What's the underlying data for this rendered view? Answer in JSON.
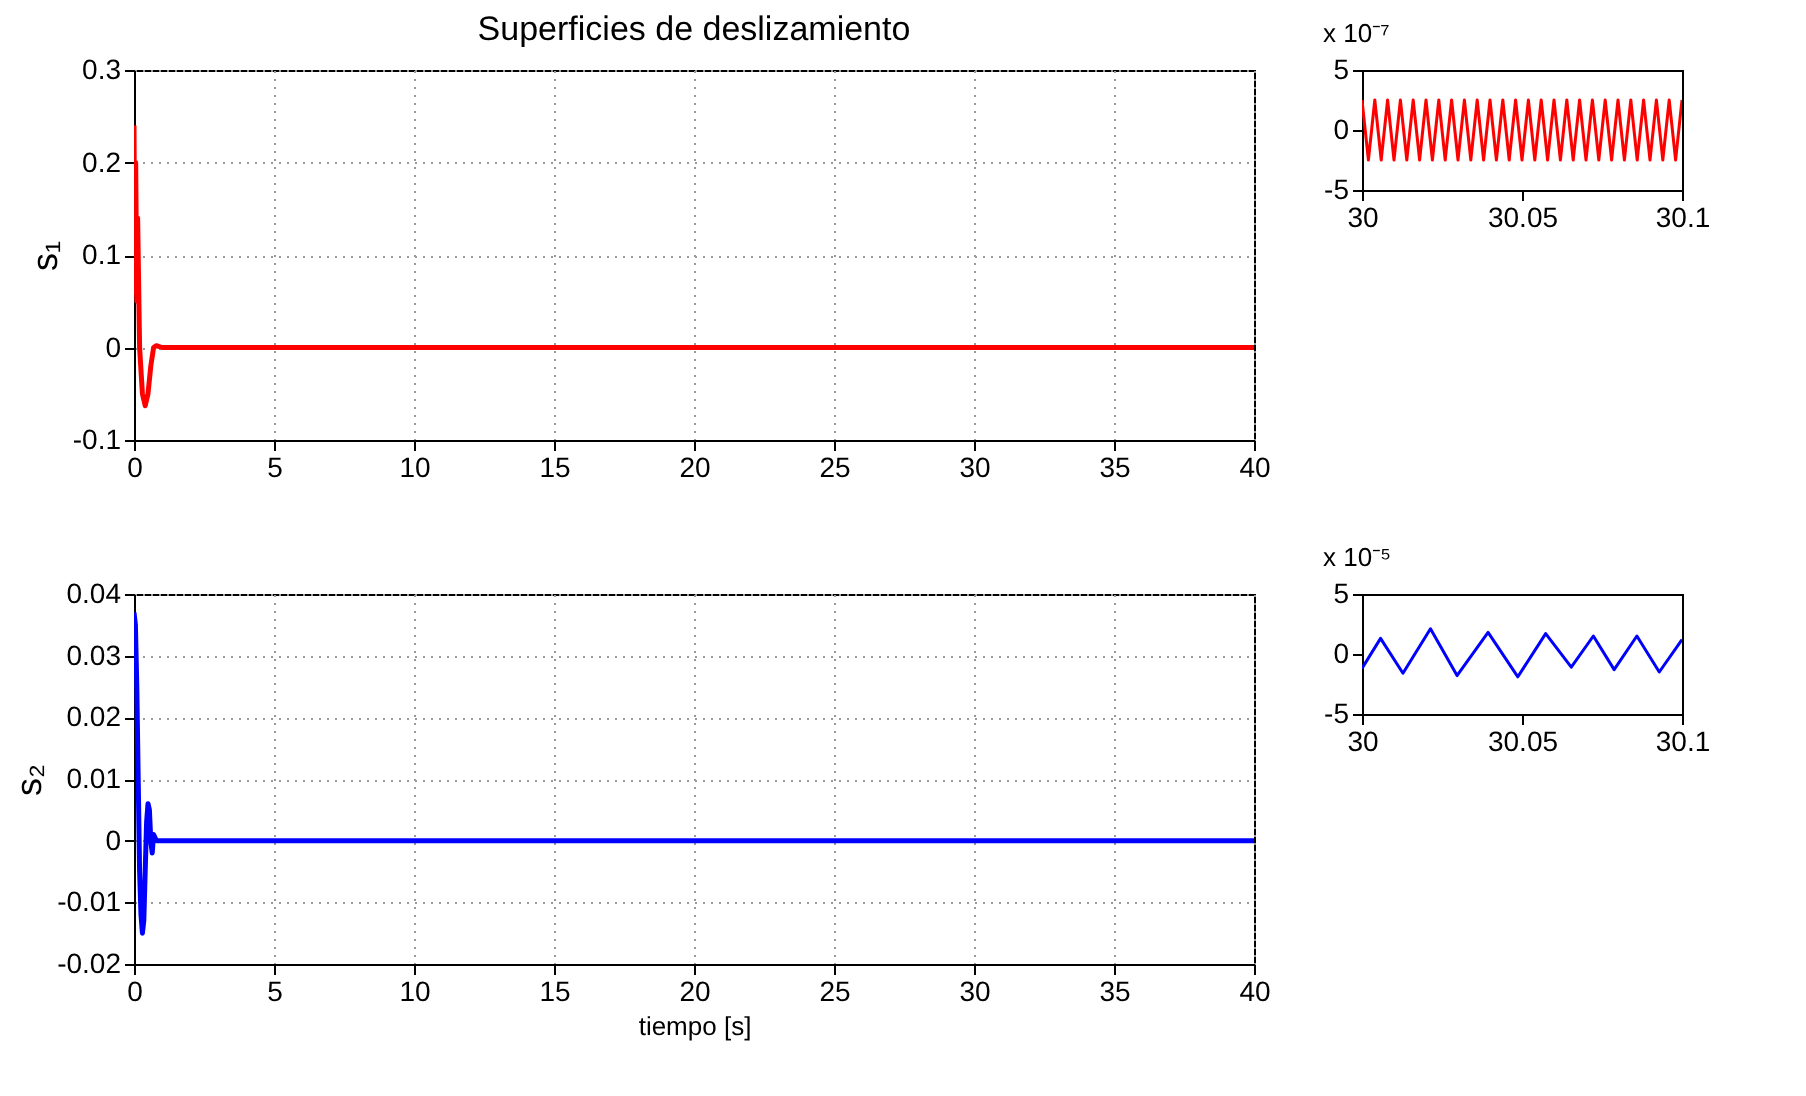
{
  "chart_data": [
    {
      "type": "line",
      "title": "Superficies de deslizamiento",
      "ylabel": "s₁",
      "x": [
        0,
        0.03,
        0.06,
        0.1,
        0.13,
        0.2,
        0.3,
        0.4,
        0.5,
        0.6,
        0.7,
        0.8,
        1,
        40
      ],
      "series": [
        {
          "color": "#ff0000",
          "values": [
            0.24,
            0.06,
            0.2,
            0.05,
            0.14,
            0.0,
            -0.05,
            -0.063,
            -0.05,
            -0.02,
            0.0,
            0.002,
            0,
            0
          ]
        }
      ],
      "xlim": [
        0,
        40
      ],
      "ylim": [
        -0.1,
        0.3
      ],
      "xticks": [
        0,
        5,
        10,
        15,
        20,
        25,
        30,
        35,
        40
      ],
      "yticks": [
        -0.1,
        0,
        0.1,
        0.2,
        0.3
      ],
      "grid": true
    },
    {
      "type": "line",
      "annotations": [
        "x 10⁻⁷"
      ],
      "x": [
        30,
        30.002,
        30.004,
        30.006,
        30.008,
        30.01,
        30.012,
        30.014,
        30.016,
        30.018,
        30.02,
        30.022,
        30.024,
        30.026,
        30.028,
        30.03,
        30.032,
        30.034,
        30.036,
        30.038,
        30.04,
        30.042,
        30.044,
        30.046,
        30.048,
        30.05,
        30.052,
        30.054,
        30.056,
        30.058,
        30.06,
        30.062,
        30.064,
        30.066,
        30.068,
        30.07,
        30.072,
        30.074,
        30.076,
        30.078,
        30.08,
        30.082,
        30.084,
        30.086,
        30.088,
        30.09,
        30.092,
        30.094,
        30.096,
        30.098,
        30.1
      ],
      "series": [
        {
          "color": "#ff0000",
          "values": [
            2.5,
            -2.5,
            2.5,
            -2.5,
            2.5,
            -2.5,
            2.5,
            -2.5,
            2.5,
            -2.5,
            2.5,
            -2.5,
            2.5,
            -2.5,
            2.5,
            -2.5,
            2.5,
            -2.5,
            2.5,
            -2.5,
            2.5,
            -2.5,
            2.5,
            -2.5,
            2.5,
            -2.5,
            2.5,
            -2.5,
            2.5,
            -2.5,
            2.5,
            -2.5,
            2.5,
            -2.5,
            2.5,
            -2.5,
            2.5,
            -2.5,
            2.5,
            -2.5,
            2.5,
            -2.5,
            2.5,
            -2.5,
            2.5,
            -2.5,
            2.5,
            -2.5,
            2.5,
            -2.5,
            2.5
          ]
        }
      ],
      "xlim": [
        30,
        30.1
      ],
      "ylim": [
        -5,
        5
      ],
      "xticks": [
        30,
        30.05,
        30.1
      ],
      "yticks": [
        -5,
        0,
        5
      ],
      "grid": false
    },
    {
      "type": "line",
      "xlabel": "tiempo [s]",
      "ylabel": "s₂",
      "x": [
        0,
        0.05,
        0.1,
        0.15,
        0.2,
        0.25,
        0.3,
        0.35,
        0.4,
        0.45,
        0.5,
        0.55,
        0.6,
        0.65,
        0.7,
        0.8,
        40
      ],
      "series": [
        {
          "color": "#0000ff",
          "values": [
            0.037,
            0.035,
            0.025,
            0.01,
            -0.005,
            -0.012,
            -0.015,
            -0.013,
            -0.005,
            0.003,
            0.006,
            0.005,
            0.0,
            -0.002,
            0.001,
            0,
            0
          ]
        }
      ],
      "xlim": [
        0,
        40
      ],
      "ylim": [
        -0.02,
        0.04
      ],
      "xticks": [
        0,
        5,
        10,
        15,
        20,
        25,
        30,
        35,
        40
      ],
      "yticks": [
        -0.02,
        -0.01,
        0,
        0.01,
        0.02,
        0.03,
        0.04
      ],
      "grid": true
    },
    {
      "type": "line",
      "annotations": [
        "x 10⁻⁵"
      ],
      "x": [
        30,
        30.0058,
        30.0128,
        30.0214,
        30.0297,
        30.0394,
        30.0487,
        30.0574,
        30.0654,
        30.0723,
        30.0788,
        30.0859,
        30.0929,
        30.1
      ],
      "series": [
        {
          "color": "#0000ff",
          "values": [
            -1.2,
            1.3,
            -1.6,
            2.1,
            -1.8,
            1.8,
            -1.9,
            1.7,
            -1.1,
            1.5,
            -1.3,
            1.5,
            -1.5,
            1.2
          ]
        }
      ],
      "xlim": [
        30,
        30.1
      ],
      "ylim": [
        -5,
        5
      ],
      "xticks": [
        30,
        30.05,
        30.1
      ],
      "yticks": [
        -5,
        0,
        5
      ],
      "grid": false
    }
  ]
}
